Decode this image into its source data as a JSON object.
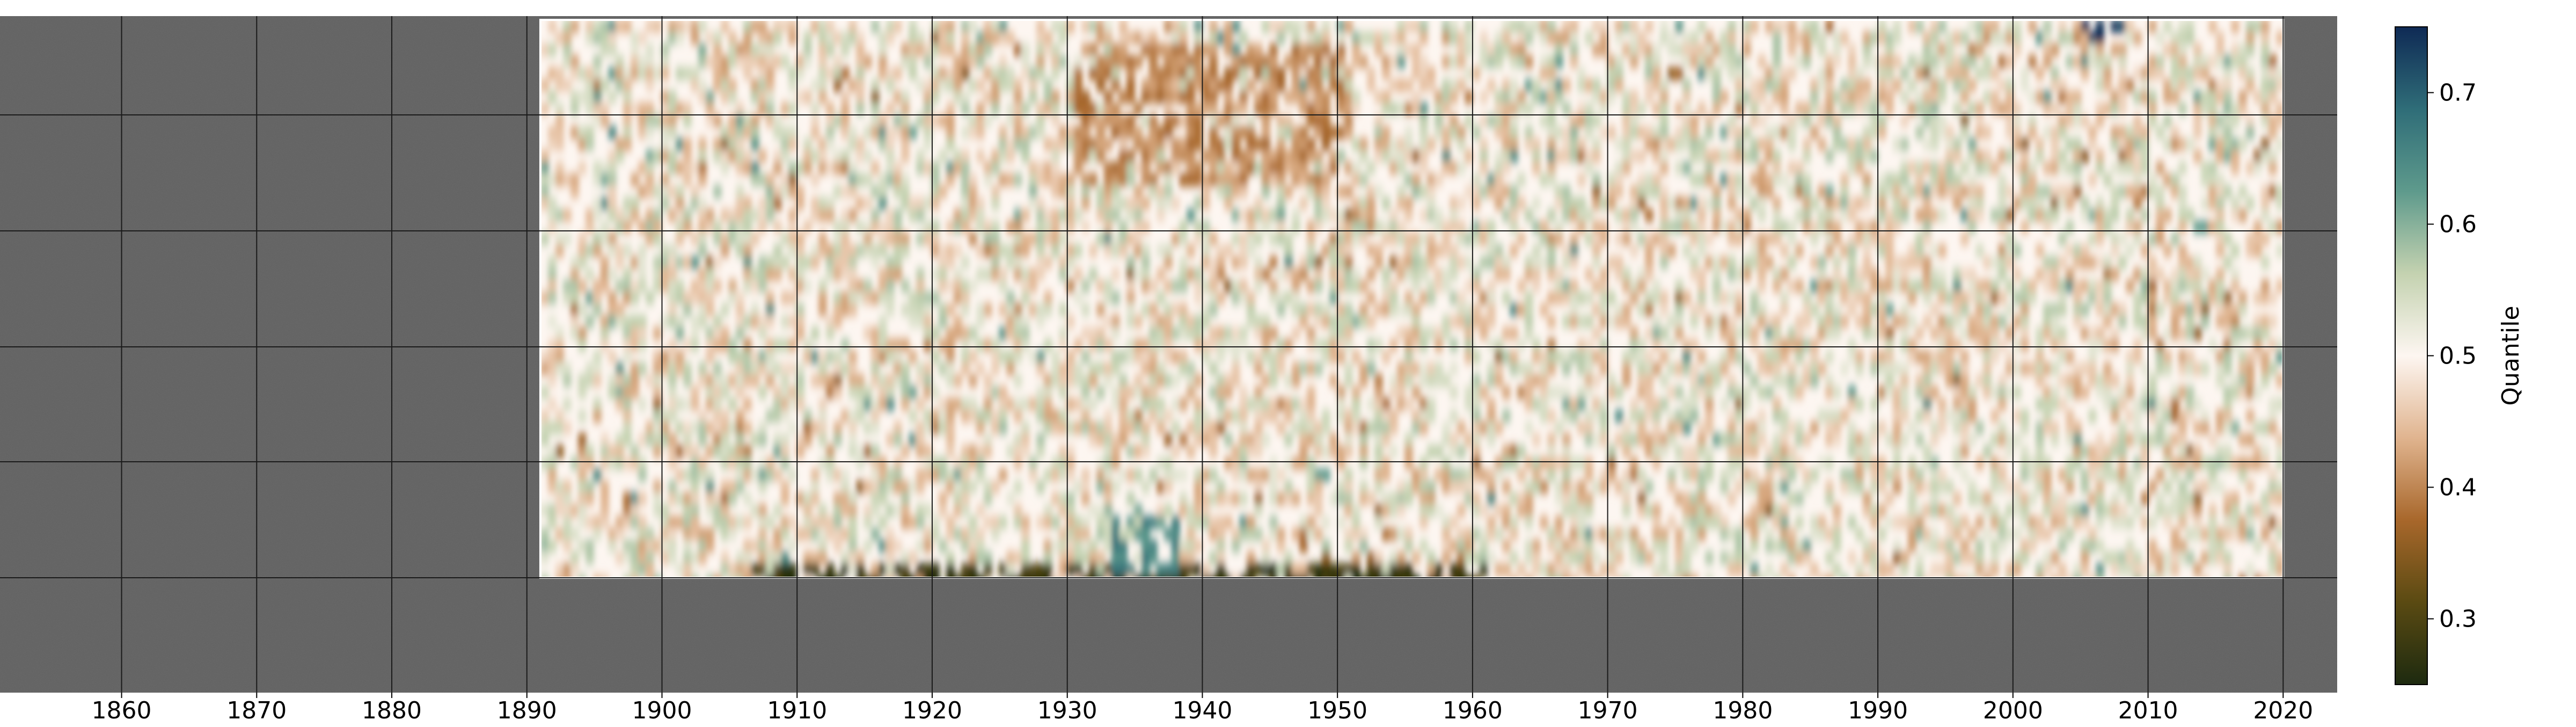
{
  "chart_data": {
    "type": "heatmap",
    "title": "",
    "xlabel": "",
    "ylabel": "",
    "x_ticks": [
      1860,
      1870,
      1880,
      1890,
      1900,
      1910,
      1920,
      1930,
      1940,
      1950,
      1960,
      1970,
      1980,
      1990,
      2000,
      2010,
      2020
    ],
    "xlim": [
      1851,
      2024
    ],
    "y_ticks": [],
    "grid": true,
    "missing_data_color": "#5f5f5f",
    "data_coverage": {
      "x_start": 1891,
      "x_end": 2020
    },
    "colorbar": {
      "label": "Quantile",
      "colormap": "BrBG-like diverging",
      "vmin": 0.25,
      "vmax": 0.75,
      "ticks": [
        0.3,
        0.4,
        0.5,
        0.6,
        0.7
      ],
      "tick_labels": [
        "0.3",
        "0.4",
        "0.5",
        "0.6",
        "0.7"
      ],
      "colors": [
        "#1d2a10",
        "#5a4a12",
        "#a8672b",
        "#e0b48f",
        "#fdf6f1",
        "#c4d2b0",
        "#5e9a8c",
        "#2f6d78",
        "#0f2a55"
      ]
    },
    "features": [
      {
        "x_range": [
          1930,
          1951
        ],
        "row_band": "upper",
        "quantile": 0.4,
        "description_color": "brown"
      },
      {
        "x_range": [
          1906,
          1961
        ],
        "row_band": "bottom",
        "quantile": 0.28,
        "description_color": "dark olive"
      },
      {
        "x_range": [
          1933,
          1938
        ],
        "row_band": "lower",
        "quantile": 0.65,
        "description_color": "teal"
      },
      {
        "x_range": [
          2005,
          2008
        ],
        "row_band": "top",
        "quantile": 0.75,
        "description_color": "navy"
      }
    ]
  }
}
